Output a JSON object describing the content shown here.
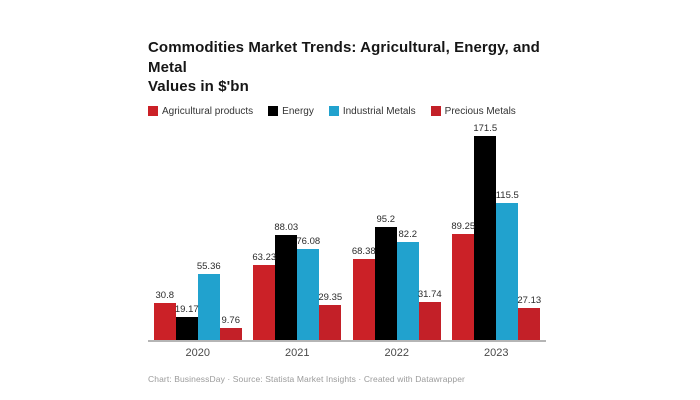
{
  "page": {
    "background": "#ffffff"
  },
  "header": {
    "title_line1": "Commodities Market Trends: Agricultural, Energy, and Metal",
    "title_line2": "Values in $'bn"
  },
  "chart_data": {
    "type": "bar",
    "title": "Commodities Market Trends: Agricultural, Energy, and Metal Values in $'bn",
    "categories": [
      "2020",
      "2021",
      "2022",
      "2023"
    ],
    "series": [
      {
        "name": "Agricultural products",
        "color": "#cb2127",
        "values": [
          30.8,
          63.23,
          68.38,
          89.25
        ]
      },
      {
        "name": "Energy",
        "color": "#000000",
        "values": [
          19.17,
          88.03,
          95.2,
          171.5
        ]
      },
      {
        "name": "Industrial Metals",
        "color": "#21a2ce",
        "values": [
          55.36,
          76.08,
          82.2,
          115.5
        ]
      },
      {
        "name": "Precious Metals",
        "color": "#c32028",
        "values": [
          9.76,
          29.35,
          31.74,
          27.13
        ]
      }
    ],
    "ylabel": "",
    "xlabel": "",
    "ylim": [
      0,
      180
    ],
    "grid": false,
    "legend_position": "top",
    "value_labels": true,
    "axis_line_color": "#b5b5b5"
  },
  "footer": {
    "text": "Chart: BusinessDay · Source: Statista Market Insights · Created with Datawrapper"
  }
}
